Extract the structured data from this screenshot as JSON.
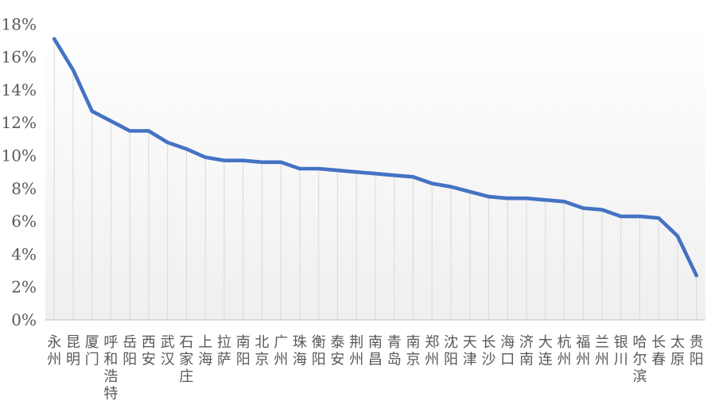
{
  "chart_data": {
    "type": "line",
    "title": "",
    "xlabel": "",
    "ylabel": "",
    "categories": [
      "永州",
      "昆明",
      "厦门",
      "呼和浩特",
      "岳阳",
      "西安",
      "武汉",
      "石家庄",
      "上海",
      "拉萨",
      "南阳",
      "北京",
      "广州",
      "珠海",
      "衡阳",
      "泰安",
      "荆州",
      "南昌",
      "青岛",
      "南京",
      "郑州",
      "沈阳",
      "天津",
      "长沙",
      "海口",
      "济南",
      "大连",
      "杭州",
      "福州",
      "兰州",
      "银川",
      "哈尔滨",
      "长春",
      "太原",
      "贵阳"
    ],
    "values": [
      17.1,
      15.2,
      12.7,
      12.1,
      11.5,
      11.5,
      10.8,
      10.4,
      9.9,
      9.7,
      9.7,
      9.6,
      9.6,
      9.2,
      9.2,
      9.1,
      9.0,
      8.9,
      8.8,
      8.7,
      8.3,
      8.1,
      7.8,
      7.5,
      7.4,
      7.4,
      7.3,
      7.2,
      6.8,
      6.7,
      6.3,
      6.3,
      6.2,
      5.1,
      2.7
    ],
    "y_tick_labels": [
      "0%",
      "2%",
      "4%",
      "6%",
      "8%",
      "10%",
      "12%",
      "14%",
      "16%",
      "18%"
    ],
    "ylim": [
      0,
      18
    ],
    "ytick_step": 2,
    "value_unit": "%",
    "legend": "none",
    "grid": "vertical-droplines-only",
    "colors": {
      "line": "#4472C4",
      "dropline": "#DBDBDB",
      "axis_line": "#C9C9C9",
      "tick_label": "#595959",
      "plot_bg_top": "#FFFFFF",
      "plot_bg_bottom": "#EFEFEF"
    }
  }
}
